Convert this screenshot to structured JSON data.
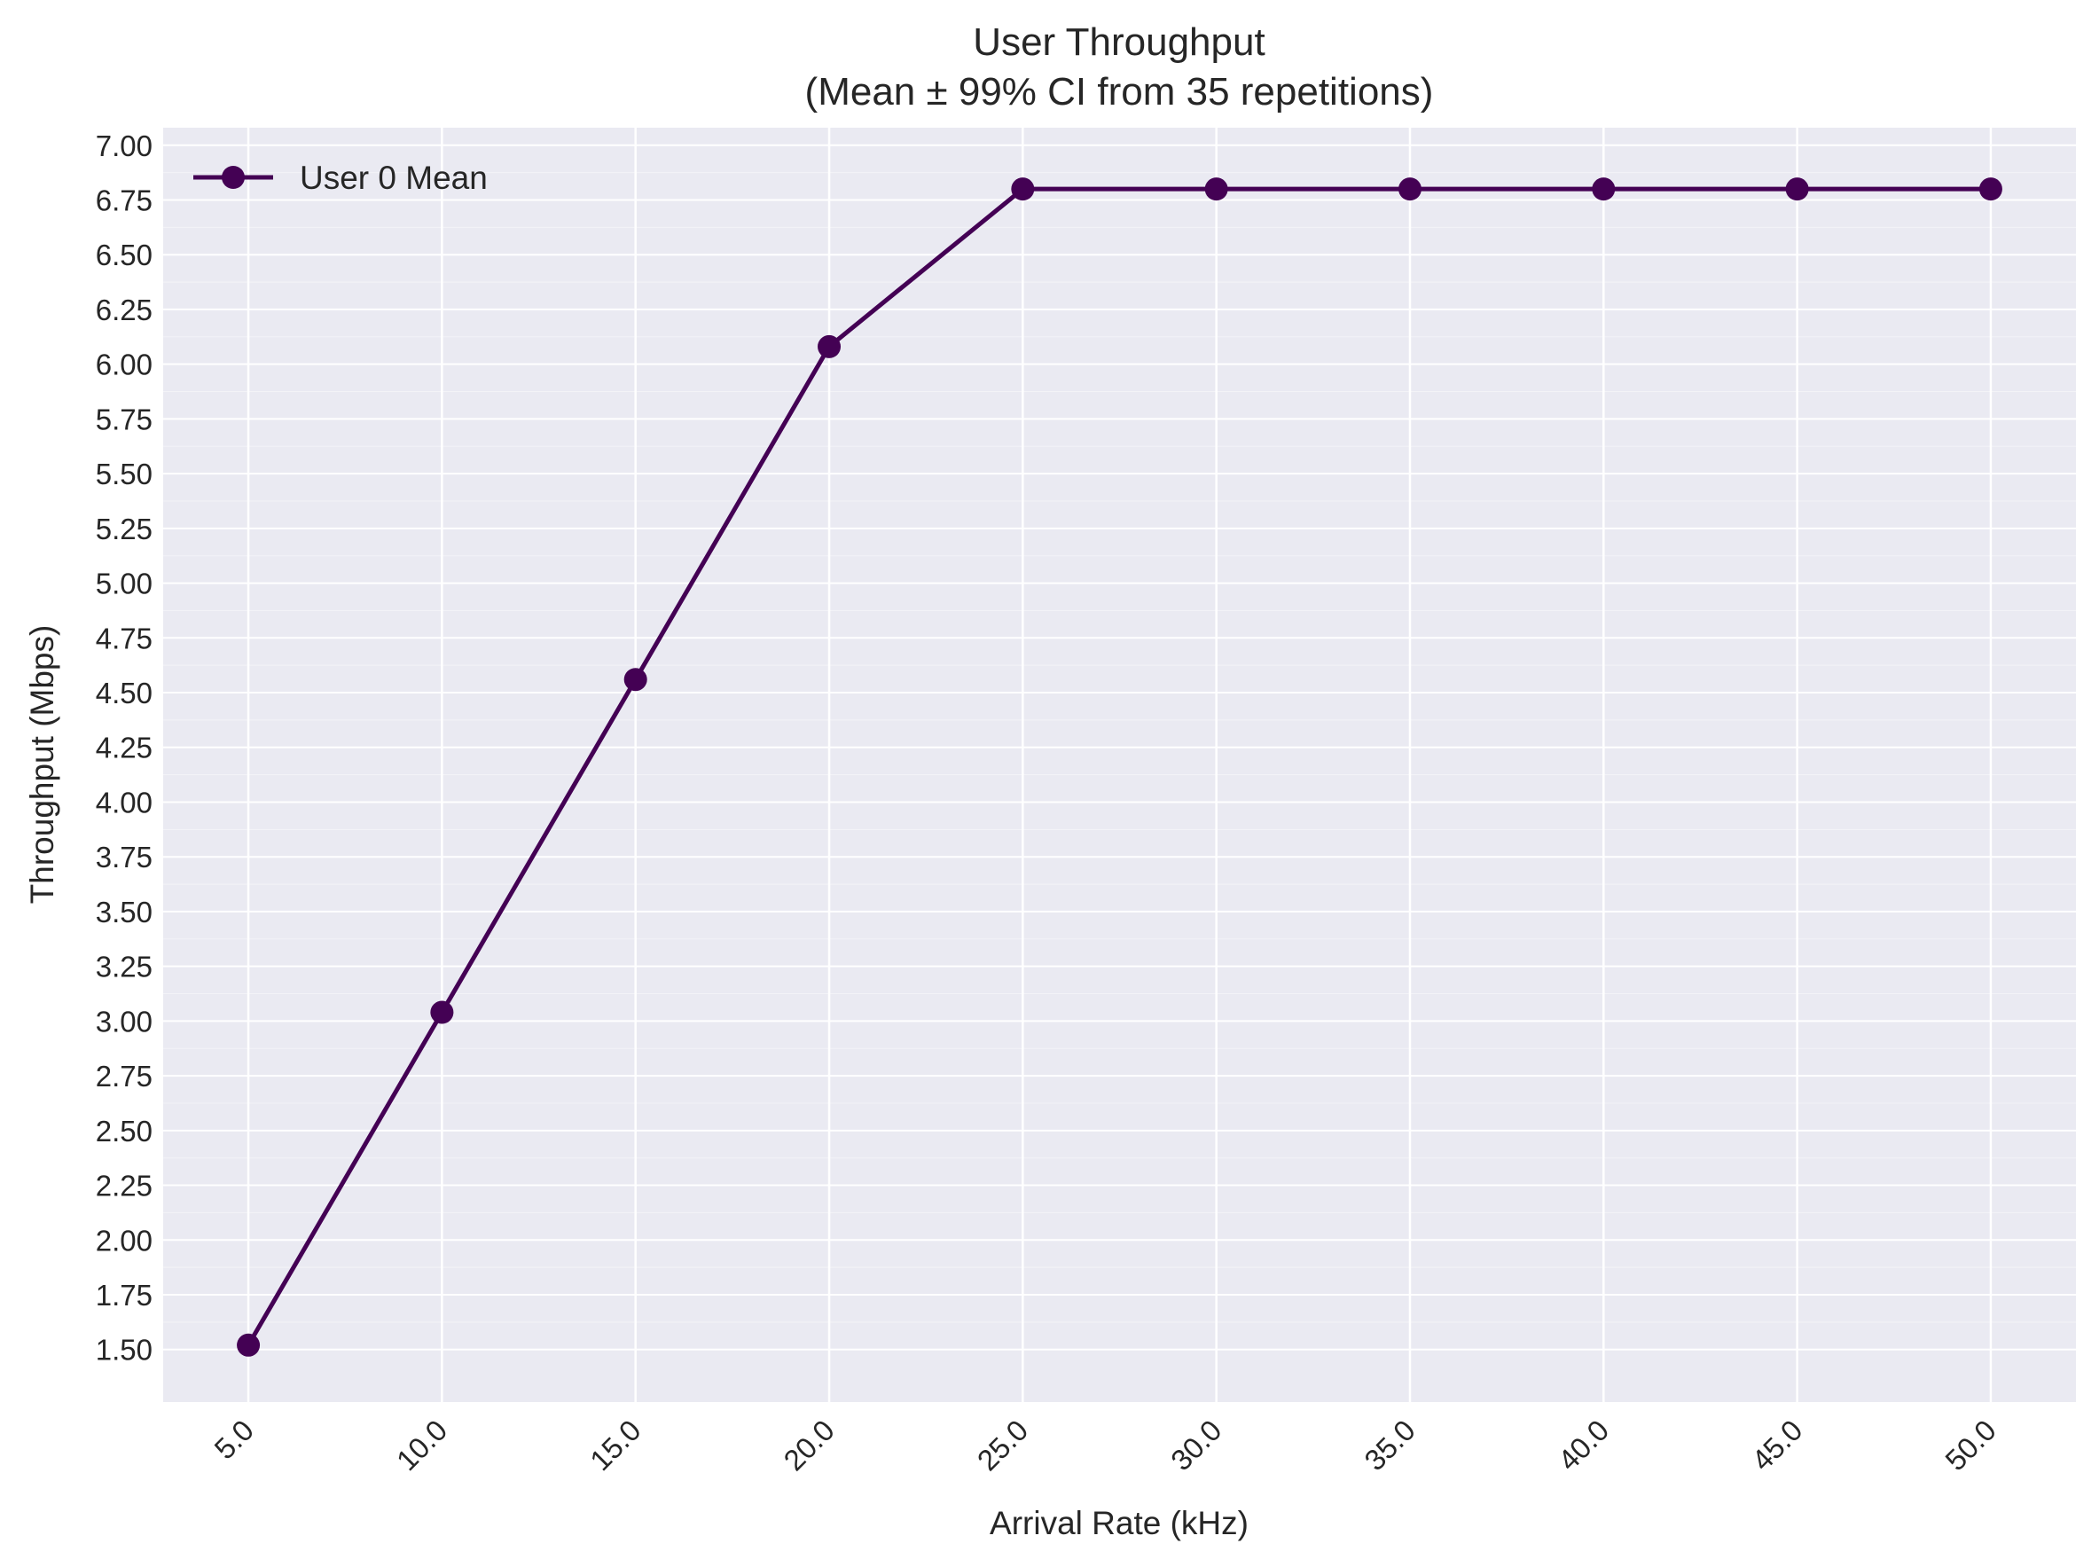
{
  "chart_data": {
    "type": "line",
    "title": "User Throughput",
    "subtitle": "(Mean ± 99% CI from 35 repetitions)",
    "xlabel": "Arrival Rate (kHz)",
    "ylabel": "Throughput (Mbps)",
    "x": [
      5.0,
      10.0,
      15.0,
      20.0,
      25.0,
      30.0,
      35.0,
      40.0,
      45.0,
      50.0
    ],
    "x_tick_labels": [
      "5.0",
      "10.0",
      "15.0",
      "20.0",
      "25.0",
      "30.0",
      "35.0",
      "40.0",
      "45.0",
      "50.0"
    ],
    "xlim": [
      2.8,
      52.2
    ],
    "ylim": [
      1.26,
      7.08
    ],
    "y_ticks": [
      1.5,
      1.75,
      2.0,
      2.25,
      2.5,
      2.75,
      3.0,
      3.25,
      3.5,
      3.75,
      4.0,
      4.25,
      4.5,
      4.75,
      5.0,
      5.25,
      5.5,
      5.75,
      6.0,
      6.25,
      6.5,
      6.75,
      7.0
    ],
    "y_tick_labels": [
      "1.50",
      "1.75",
      "2.00",
      "2.25",
      "2.50",
      "2.75",
      "3.00",
      "3.25",
      "3.50",
      "3.75",
      "4.00",
      "4.25",
      "4.50",
      "4.75",
      "5.00",
      "5.25",
      "5.50",
      "5.75",
      "6.00",
      "6.25",
      "6.50",
      "6.75",
      "7.00"
    ],
    "grid": true,
    "legend_position": "top-left",
    "series": [
      {
        "name": "User 0 Mean",
        "color": "#440154",
        "marker": "circle",
        "values": [
          1.52,
          3.04,
          4.56,
          6.08,
          6.8,
          6.8,
          6.8,
          6.8,
          6.8,
          6.8
        ]
      }
    ],
    "colors": {
      "plot_background": "#eaeaf2",
      "grid": "#ffffff",
      "text": "#262626"
    }
  }
}
